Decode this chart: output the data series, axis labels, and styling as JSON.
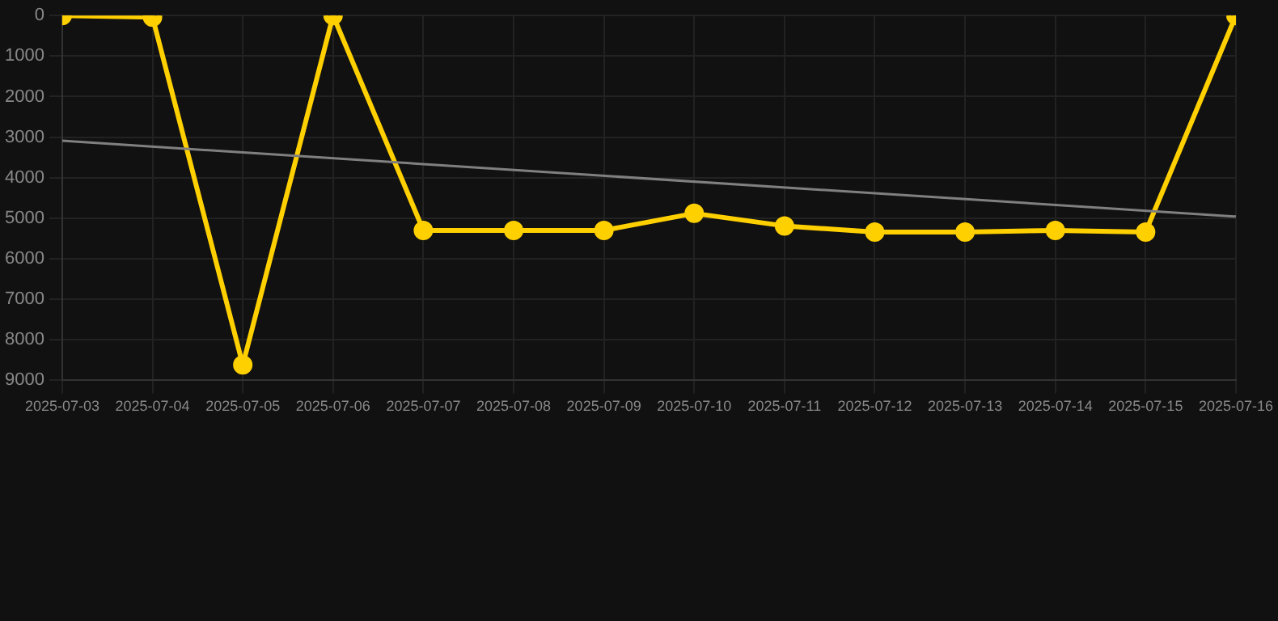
{
  "chart_data": {
    "type": "line",
    "categories": [
      "2025-07-03",
      "2025-07-04",
      "2025-07-05",
      "2025-07-06",
      "2025-07-07",
      "2025-07-08",
      "2025-07-09",
      "2025-07-10",
      "2025-07-11",
      "2025-07-12",
      "2025-07-13",
      "2025-07-14",
      "2025-07-15",
      "2025-07-16"
    ],
    "series": [
      {
        "color": "#ffd000",
        "values": [
          0,
          40,
          8620,
          0,
          5300,
          5300,
          5300,
          4880,
          5190,
          5340,
          5340,
          5300,
          5340,
          0
        ],
        "marker": "circle"
      },
      {
        "type": "line",
        "color": "#808080",
        "values": [
          3090,
          null,
          null,
          null,
          null,
          null,
          null,
          null,
          null,
          null,
          null,
          null,
          null,
          4960
        ],
        "marker": "none"
      }
    ],
    "ylim": [
      9000,
      0
    ],
    "yticks": [
      0,
      1000,
      2000,
      3000,
      4000,
      5000,
      6000,
      7000,
      8000,
      9000
    ],
    "grid": true,
    "legend": false
  }
}
